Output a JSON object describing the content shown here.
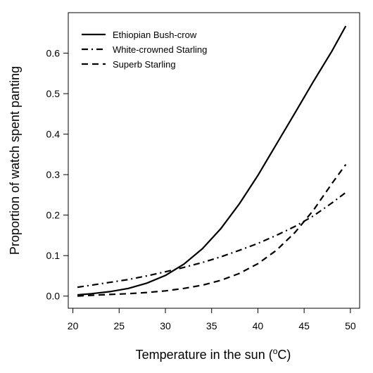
{
  "chart_data": {
    "type": "line",
    "xlabel_main": "Temperature in the sun (",
    "xlabel_sup": "o",
    "xlabel_end": "C)",
    "ylabel": "Proportion of watch spent panting",
    "xlim": [
      19.5,
      51
    ],
    "ylim": [
      -0.03,
      0.7
    ],
    "xticks": [
      20,
      25,
      30,
      35,
      40,
      45,
      50
    ],
    "yticks": [
      0.0,
      0.1,
      0.2,
      0.3,
      0.4,
      0.5,
      0.6
    ],
    "ytick_labels": [
      "0.0",
      "0.1",
      "0.2",
      "0.3",
      "0.4",
      "0.5",
      "0.6"
    ],
    "legend_position": "top-left",
    "series": [
      {
        "name": "Ethiopian Bush-crow",
        "style": "solid",
        "x": [
          20.5,
          22,
          24,
          26,
          28,
          30,
          32,
          34,
          36,
          38,
          40,
          42,
          44,
          46,
          48,
          49.5
        ],
        "y": [
          0.003,
          0.006,
          0.011,
          0.019,
          0.032,
          0.051,
          0.079,
          0.117,
          0.167,
          0.228,
          0.298,
          0.375,
          0.452,
          0.53,
          0.605,
          0.667
        ]
      },
      {
        "name": "White-crowned Starling",
        "style": "dashdot",
        "x": [
          20.5,
          22,
          24,
          26,
          28,
          30,
          32,
          34,
          36,
          38,
          40,
          42,
          44,
          46,
          48,
          49.5
        ],
        "y": [
          0.022,
          0.027,
          0.034,
          0.041,
          0.05,
          0.06,
          0.071,
          0.083,
          0.097,
          0.113,
          0.13,
          0.15,
          0.172,
          0.198,
          0.23,
          0.256
        ]
      },
      {
        "name": "Superb Starling",
        "style": "dashed",
        "x": [
          20.5,
          22,
          24,
          26,
          28,
          30,
          32,
          34,
          36,
          38,
          40,
          42,
          44,
          46,
          48,
          49.5
        ],
        "y": [
          0.0,
          0.002,
          0.004,
          0.006,
          0.009,
          0.013,
          0.019,
          0.027,
          0.039,
          0.056,
          0.08,
          0.113,
          0.157,
          0.212,
          0.278,
          0.325
        ]
      }
    ]
  }
}
